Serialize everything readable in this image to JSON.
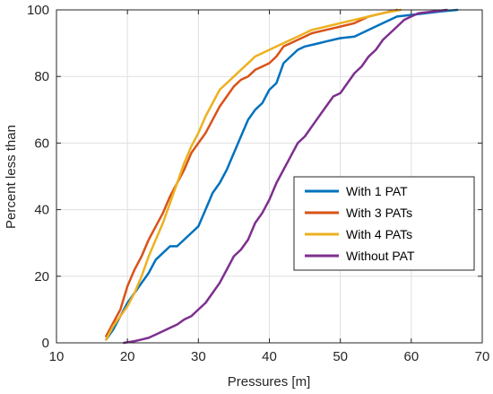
{
  "chart_data": {
    "type": "line",
    "title": "",
    "xlabel": "Pressures [m]",
    "ylabel": "Percent less than",
    "xlim": [
      10,
      70
    ],
    "ylim": [
      0,
      100
    ],
    "xticks": [
      10,
      20,
      30,
      40,
      50,
      60,
      70
    ],
    "yticks": [
      0,
      20,
      40,
      60,
      80,
      100
    ],
    "grid": true,
    "legend_position": "lower-right",
    "series": [
      {
        "name": "With 1 PAT",
        "color": "#0072BD",
        "points": [
          [
            17,
            1
          ],
          [
            18,
            4
          ],
          [
            19,
            8
          ],
          [
            20,
            12
          ],
          [
            21,
            15
          ],
          [
            22,
            18
          ],
          [
            23,
            21
          ],
          [
            24,
            25
          ],
          [
            25,
            27
          ],
          [
            26,
            29
          ],
          [
            27,
            29
          ],
          [
            28,
            31
          ],
          [
            29,
            33
          ],
          [
            30,
            35
          ],
          [
            31,
            40
          ],
          [
            32,
            45
          ],
          [
            33,
            48
          ],
          [
            34,
            52
          ],
          [
            35,
            57
          ],
          [
            36,
            62
          ],
          [
            37,
            67
          ],
          [
            38,
            70
          ],
          [
            39,
            72
          ],
          [
            40,
            76
          ],
          [
            41,
            78
          ],
          [
            42,
            84
          ],
          [
            43,
            86
          ],
          [
            44,
            88
          ],
          [
            45,
            89
          ],
          [
            46,
            89.5
          ],
          [
            47,
            90
          ],
          [
            48,
            90.5
          ],
          [
            50,
            91.5
          ],
          [
            52,
            92
          ],
          [
            54,
            94
          ],
          [
            56,
            96
          ],
          [
            58,
            98
          ],
          [
            60,
            98.5
          ],
          [
            62,
            99
          ],
          [
            64,
            99.5
          ],
          [
            66.5,
            100
          ]
        ]
      },
      {
        "name": "With 3 PATs",
        "color": "#D95319",
        "points": [
          [
            17,
            2
          ],
          [
            18,
            6
          ],
          [
            19,
            10
          ],
          [
            20,
            17
          ],
          [
            21,
            22
          ],
          [
            22,
            26
          ],
          [
            23,
            31
          ],
          [
            24,
            35
          ],
          [
            25,
            39
          ],
          [
            26,
            44
          ],
          [
            27,
            48
          ],
          [
            28,
            52
          ],
          [
            29,
            57
          ],
          [
            30,
            60
          ],
          [
            31,
            63
          ],
          [
            32,
            67
          ],
          [
            33,
            71
          ],
          [
            34,
            74
          ],
          [
            35,
            77
          ],
          [
            36,
            79
          ],
          [
            37,
            80
          ],
          [
            38,
            82
          ],
          [
            39,
            83
          ],
          [
            40,
            84
          ],
          [
            41,
            86
          ],
          [
            42,
            89
          ],
          [
            43,
            90
          ],
          [
            44,
            91
          ],
          [
            45,
            92
          ],
          [
            46,
            93
          ],
          [
            48,
            94
          ],
          [
            50,
            95
          ],
          [
            52,
            96
          ],
          [
            54,
            98
          ],
          [
            56,
            99
          ],
          [
            58,
            100
          ]
        ]
      },
      {
        "name": "With 4 PATs",
        "color": "#EDB120",
        "points": [
          [
            17,
            1
          ],
          [
            18,
            5
          ],
          [
            19,
            8
          ],
          [
            20,
            11
          ],
          [
            21,
            15
          ],
          [
            22,
            20
          ],
          [
            23,
            26
          ],
          [
            24,
            31
          ],
          [
            25,
            36
          ],
          [
            26,
            42
          ],
          [
            27,
            48
          ],
          [
            28,
            54
          ],
          [
            29,
            59
          ],
          [
            30,
            63
          ],
          [
            31,
            68
          ],
          [
            32,
            72
          ],
          [
            33,
            76
          ],
          [
            34,
            78
          ],
          [
            35,
            80
          ],
          [
            36,
            82
          ],
          [
            37,
            84
          ],
          [
            38,
            86
          ],
          [
            39,
            87
          ],
          [
            40,
            88
          ],
          [
            41,
            89
          ],
          [
            42,
            90
          ],
          [
            43,
            91
          ],
          [
            44,
            92
          ],
          [
            45,
            93
          ],
          [
            46,
            94
          ],
          [
            48,
            95
          ],
          [
            50,
            96
          ],
          [
            52,
            97
          ],
          [
            54,
            98
          ],
          [
            56,
            99
          ],
          [
            58.5,
            100
          ]
        ]
      },
      {
        "name": "Without PAT",
        "color": "#7E2F8E",
        "points": [
          [
            19.5,
            0
          ],
          [
            21,
            0.5
          ],
          [
            22,
            1
          ],
          [
            23,
            1.5
          ],
          [
            24,
            2.5
          ],
          [
            25,
            3.5
          ],
          [
            26,
            4.5
          ],
          [
            27,
            5.5
          ],
          [
            28,
            7
          ],
          [
            29,
            8
          ],
          [
            30,
            10
          ],
          [
            31,
            12
          ],
          [
            32,
            15
          ],
          [
            33,
            18
          ],
          [
            34,
            22
          ],
          [
            35,
            26
          ],
          [
            36,
            28
          ],
          [
            37,
            31
          ],
          [
            38,
            36
          ],
          [
            39,
            39
          ],
          [
            40,
            43
          ],
          [
            41,
            48
          ],
          [
            42,
            52
          ],
          [
            43,
            56
          ],
          [
            44,
            60
          ],
          [
            45,
            62
          ],
          [
            46,
            65
          ],
          [
            47,
            68
          ],
          [
            48,
            71
          ],
          [
            49,
            74
          ],
          [
            50,
            75
          ],
          [
            51,
            78
          ],
          [
            52,
            81
          ],
          [
            53,
            83
          ],
          [
            54,
            86
          ],
          [
            55,
            88
          ],
          [
            56,
            91
          ],
          [
            57,
            93
          ],
          [
            58,
            95
          ],
          [
            59,
            97
          ],
          [
            60,
            98
          ],
          [
            61,
            99
          ],
          [
            63,
            99.5
          ],
          [
            65,
            100
          ]
        ]
      }
    ]
  }
}
